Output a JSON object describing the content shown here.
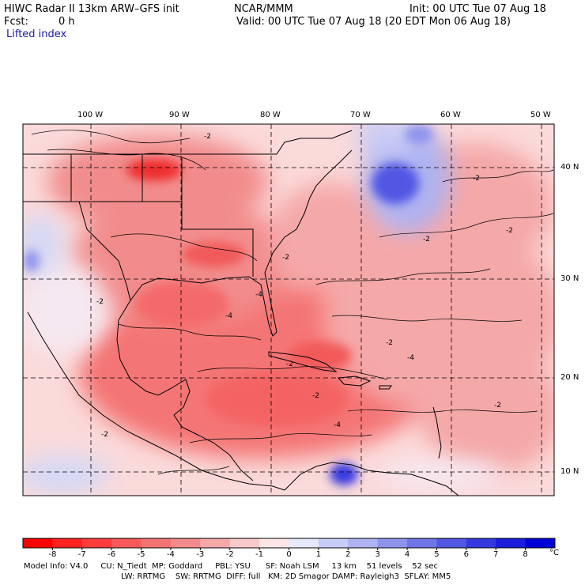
{
  "header": {
    "model_title": "HIWC Radar II 13km ARW–GFS init",
    "org": "NCAR/MMM",
    "init": "Init: 00 UTC Tue 07 Aug 18",
    "fcst_label": "Fcst:",
    "fcst_value": "0 h",
    "valid": "Valid: 00 UTC Tue 07 Aug 18 (20 EDT Mon 06 Aug 18)",
    "field": "Lifted index"
  },
  "map": {
    "lon_labels": [
      "100 W",
      "90 W",
      "80 W",
      "70 W",
      "60 W",
      "50 W"
    ],
    "lat_labels": [
      "40 N",
      "30 N",
      "20 N",
      "10 N"
    ],
    "contour_labels": [
      "-2",
      "-2",
      "-2",
      "-4",
      "-2",
      "-4",
      "-2",
      "-2",
      "-2",
      "-2",
      "-4",
      "-2",
      "-2",
      "-2",
      "-4"
    ]
  },
  "legend": {
    "labels": [
      "-8",
      "-7",
      "-6",
      "-5",
      "-4",
      "-3",
      "-2",
      "-1",
      "0",
      "1",
      "2",
      "3",
      "4",
      "5",
      "6",
      "7",
      "8"
    ],
    "unit": "°C",
    "colors": [
      "#ff0000",
      "#ff2020",
      "#ff3c3c",
      "#f85a5a",
      "#f47474",
      "#f28c8c",
      "#f5a8a8",
      "#f9c8c8",
      "#fde6e6",
      "#e6e8fb",
      "#c9ccf6",
      "#aeb2f1",
      "#8e93ec",
      "#6f74e7",
      "#5156e3",
      "#3439df",
      "#1a1ddb",
      "#0000d6"
    ]
  },
  "footer": {
    "line1": "Model Info: V4.0     CU: N_Tiedt  MP: Goddard     PBL: YSU      SF: Noah LSM     13 km    51 levels    52 sec",
    "line2": "LW: RRTMG    SW: RRTMG  DIFF: full   KM: 2D Smagor DAMP: Rayleigh3  SFLAY: MM5"
  }
}
